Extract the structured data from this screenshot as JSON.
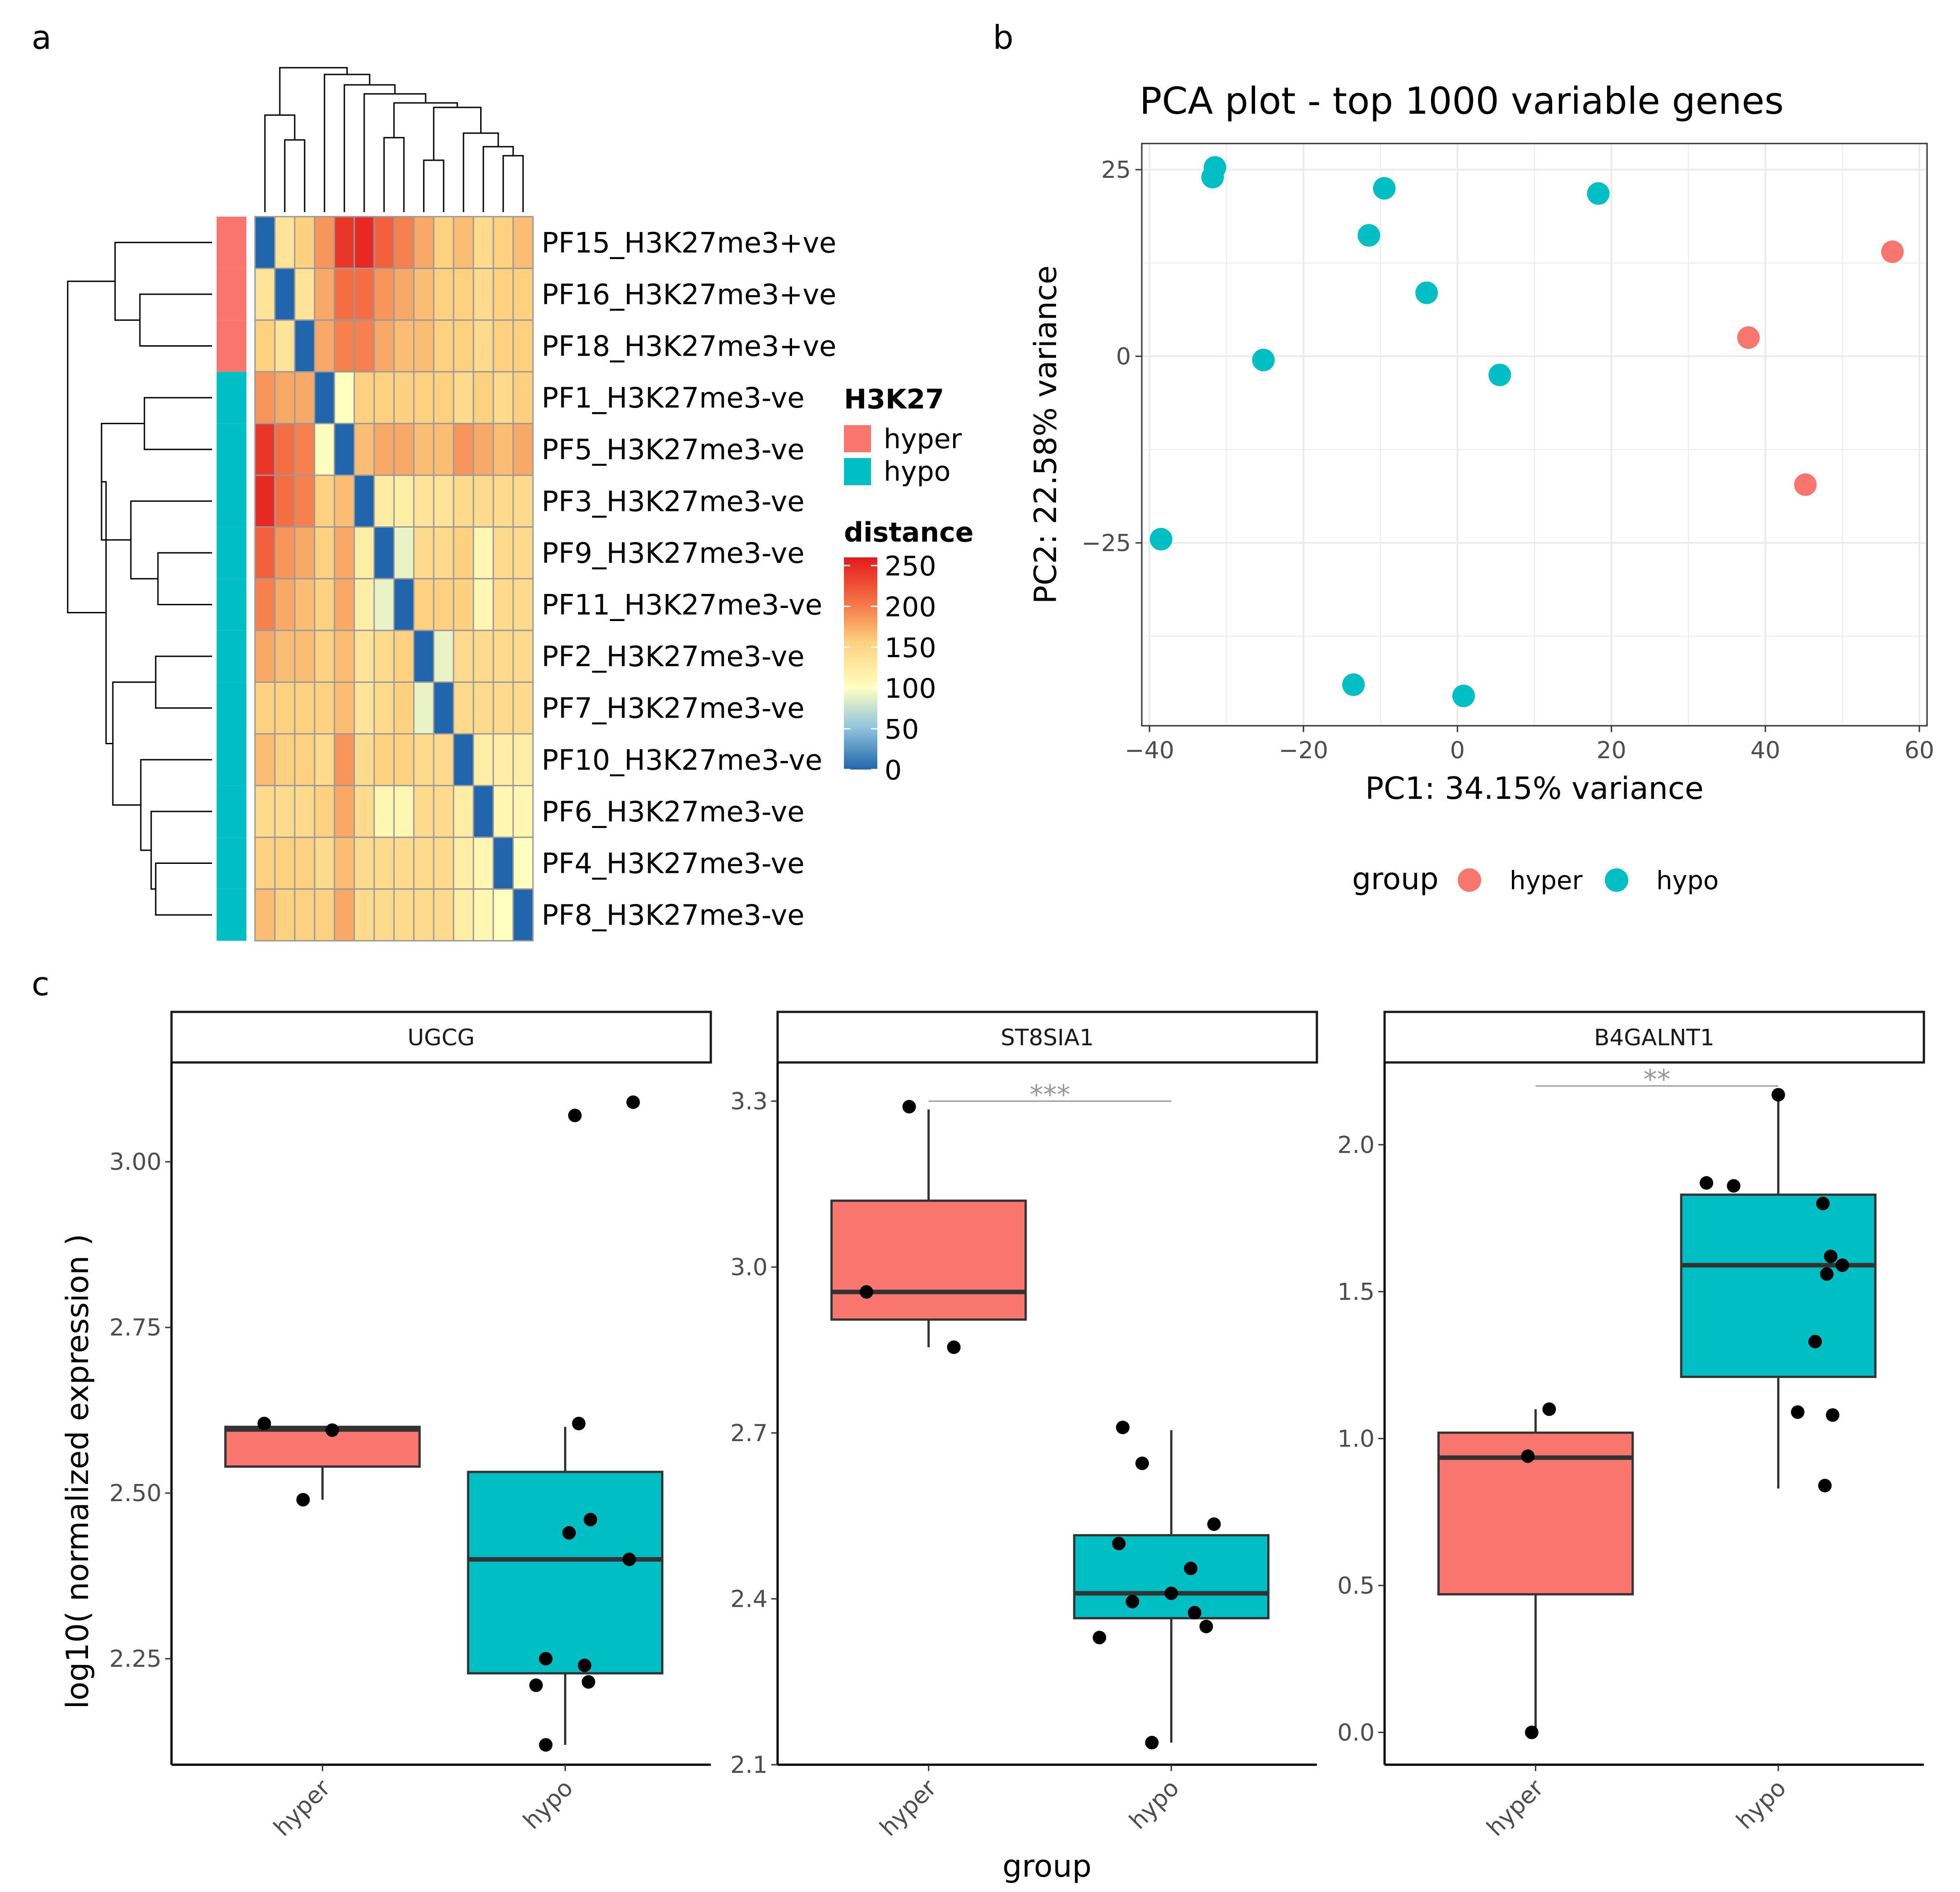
{
  "colors": {
    "hyper": "#F8766D",
    "hypo": "#00BFC4",
    "panel_border": "#333333",
    "grid": "#EBEBEB",
    "axis_text": "#4D4D4D",
    "sig": "#999999",
    "heat_low": "#2166AC",
    "heat_mid": "#FFFFBF",
    "heat_high": "#E41A1C"
  },
  "panel_labels": [
    "a",
    "b",
    "c"
  ],
  "chart_data": [
    {
      "panel": "a",
      "type": "heatmap",
      "row_labels": [
        "PF15_H3K27me3+ve",
        "PF16_H3K27me3+ve",
        "PF18_H3K27me3+ve",
        "PF1_H3K27me3-ve",
        "PF5_H3K27me3-ve",
        "PF3_H3K27me3-ve",
        "PF9_H3K27me3-ve",
        "PF11_H3K27me3-ve",
        "PF2_H3K27me3-ve",
        "PF7_H3K27me3-ve",
        "PF10_H3K27me3-ve",
        "PF6_H3K27me3-ve",
        "PF4_H3K27me3-ve",
        "PF8_H3K27me3-ve"
      ],
      "row_groups": [
        "hyper",
        "hyper",
        "hyper",
        "hypo",
        "hypo",
        "hypo",
        "hypo",
        "hypo",
        "hypo",
        "hypo",
        "hypo",
        "hypo",
        "hypo",
        "hypo"
      ],
      "values": [
        [
          0,
          130,
          150,
          180,
          240,
          250,
          210,
          190,
          170,
          150,
          160,
          140,
          150,
          160
        ],
        [
          130,
          0,
          130,
          170,
          200,
          200,
          180,
          170,
          160,
          150,
          150,
          140,
          150,
          150
        ],
        [
          150,
          130,
          0,
          170,
          190,
          190,
          170,
          160,
          160,
          150,
          150,
          140,
          150,
          150
        ],
        [
          180,
          170,
          170,
          0,
          100,
          150,
          150,
          150,
          150,
          150,
          140,
          150,
          140,
          150
        ],
        [
          240,
          200,
          190,
          100,
          0,
          160,
          170,
          170,
          160,
          160,
          180,
          170,
          160,
          170
        ],
        [
          250,
          200,
          190,
          150,
          160,
          0,
          120,
          120,
          130,
          130,
          140,
          140,
          140,
          140
        ],
        [
          210,
          180,
          170,
          150,
          170,
          120,
          0,
          90,
          140,
          140,
          150,
          110,
          140,
          140
        ],
        [
          190,
          170,
          160,
          150,
          170,
          120,
          90,
          0,
          150,
          150,
          150,
          110,
          140,
          140
        ],
        [
          170,
          160,
          160,
          150,
          160,
          130,
          140,
          150,
          0,
          90,
          140,
          140,
          140,
          140
        ],
        [
          150,
          150,
          150,
          150,
          160,
          130,
          140,
          150,
          90,
          0,
          140,
          140,
          140,
          140
        ],
        [
          160,
          150,
          150,
          140,
          180,
          140,
          150,
          150,
          140,
          140,
          0,
          120,
          120,
          120
        ],
        [
          140,
          140,
          140,
          150,
          170,
          140,
          110,
          110,
          140,
          140,
          120,
          0,
          110,
          110
        ],
        [
          150,
          150,
          150,
          140,
          160,
          140,
          140,
          140,
          140,
          140,
          120,
          110,
          0,
          100
        ],
        [
          160,
          150,
          150,
          150,
          170,
          140,
          140,
          140,
          140,
          140,
          120,
          110,
          100,
          0
        ]
      ],
      "annotation_title": "H3K27",
      "annotation_legend": [
        "hyper",
        "hypo"
      ],
      "colorbar_title": "distance",
      "colorbar_ticks": [
        250,
        200,
        150,
        100,
        50,
        0
      ],
      "range": [
        0,
        260
      ]
    },
    {
      "panel": "b",
      "type": "scatter",
      "title": "PCA plot - top 1000 variable genes",
      "xlabel": "PC1: 34.15% variance",
      "ylabel": "PC2: 22.58% variance",
      "xlim": [
        -41,
        61
      ],
      "ylim": [
        -49.5,
        28.5
      ],
      "xticks": [
        -40,
        -20,
        0,
        20,
        40,
        60
      ],
      "xtick_labels": [
        "−40",
        "−20",
        "0",
        "20",
        "40",
        "60"
      ],
      "yticks": [
        -25,
        0,
        25
      ],
      "ytick_labels": [
        "−25",
        "0",
        "25"
      ],
      "legend_title": "group",
      "legend_labels": [
        "hyper",
        "hypo"
      ],
      "series": [
        {
          "name": "hyper",
          "points": [
            [
              56.5,
              14
            ],
            [
              37.8,
              2.5
            ],
            [
              45.2,
              -17.2
            ]
          ]
        },
        {
          "name": "hypo",
          "points": [
            [
              -31.5,
              25.3
            ],
            [
              -31.8,
              24
            ],
            [
              -9.5,
              22.5
            ],
            [
              18.3,
              21.8
            ],
            [
              -11.5,
              16.2
            ],
            [
              -4,
              8.5
            ],
            [
              -25.2,
              -0.5
            ],
            [
              5.5,
              -2.5
            ],
            [
              -38.5,
              -24.5
            ],
            [
              -13.5,
              -44
            ],
            [
              0.8,
              -45.5
            ]
          ]
        }
      ]
    },
    {
      "panel": "c",
      "type": "box",
      "ylabel": "log10( normalized expression )",
      "xlabel": "group",
      "categories": [
        "hyper",
        "hypo"
      ],
      "facets": [
        {
          "title": "UGCG",
          "ylim": [
            2.09,
            3.15
          ],
          "yticks": [
            2.25,
            2.5,
            2.75,
            3.0
          ],
          "ytick_labels": [
            "2.25",
            "2.50",
            "2.75",
            "3.00"
          ],
          "significance": "",
          "boxes": [
            {
              "group": "hyper",
              "q1": 2.54,
              "median": 2.596,
              "q3": 2.6,
              "lower": 2.49,
              "upper": 2.6
            },
            {
              "group": "hypo",
              "q1": 2.228,
              "median": 2.4,
              "q3": 2.532,
              "lower": 2.12,
              "upper": 2.6
            }
          ],
          "points": [
            {
              "group": "hyper",
              "x": -0.3,
              "y": 2.605
            },
            {
              "group": "hyper",
              "x": 0.05,
              "y": 2.595
            },
            {
              "group": "hyper",
              "x": -0.1,
              "y": 2.49
            },
            {
              "group": "hypo",
              "x": 0.05,
              "y": 3.07
            },
            {
              "group": "hypo",
              "x": 0.35,
              "y": 3.09
            },
            {
              "group": "hypo",
              "x": 0.07,
              "y": 2.605
            },
            {
              "group": "hypo",
              "x": 0.13,
              "y": 2.46
            },
            {
              "group": "hypo",
              "x": 0.02,
              "y": 2.44
            },
            {
              "group": "hypo",
              "x": 0.33,
              "y": 2.4
            },
            {
              "group": "hypo",
              "x": -0.1,
              "y": 2.25
            },
            {
              "group": "hypo",
              "x": 0.1,
              "y": 2.24
            },
            {
              "group": "hypo",
              "x": 0.12,
              "y": 2.215
            },
            {
              "group": "hypo",
              "x": -0.15,
              "y": 2.21
            },
            {
              "group": "hypo",
              "x": -0.1,
              "y": 2.12
            }
          ]
        },
        {
          "title": "ST8SIA1",
          "ylim": [
            2.1,
            3.37
          ],
          "yticks": [
            2.1,
            2.4,
            2.7,
            3.0,
            3.3
          ],
          "ytick_labels": [
            "2.1",
            "2.4",
            "2.7",
            "3.0",
            "3.3"
          ],
          "significance": "***",
          "boxes": [
            {
              "group": "hyper",
              "q1": 2.905,
              "median": 2.955,
              "q3": 3.12,
              "lower": 2.855,
              "upper": 3.285
            },
            {
              "group": "hypo",
              "q1": 2.365,
              "median": 2.41,
              "q3": 2.515,
              "lower": 2.14,
              "upper": 2.705
            }
          ],
          "points": [
            {
              "group": "hyper",
              "x": -0.1,
              "y": 3.29
            },
            {
              "group": "hyper",
              "x": -0.32,
              "y": 2.955
            },
            {
              "group": "hyper",
              "x": 0.13,
              "y": 2.855
            },
            {
              "group": "hypo",
              "x": -0.25,
              "y": 2.71
            },
            {
              "group": "hypo",
              "x": -0.15,
              "y": 2.645
            },
            {
              "group": "hypo",
              "x": 0.22,
              "y": 2.535
            },
            {
              "group": "hypo",
              "x": -0.27,
              "y": 2.5
            },
            {
              "group": "hypo",
              "x": 0.1,
              "y": 2.455
            },
            {
              "group": "hypo",
              "x": -0.2,
              "y": 2.395
            },
            {
              "group": "hypo",
              "x": 0.0,
              "y": 2.41
            },
            {
              "group": "hypo",
              "x": 0.12,
              "y": 2.375
            },
            {
              "group": "hypo",
              "x": 0.18,
              "y": 2.35
            },
            {
              "group": "hypo",
              "x": -0.37,
              "y": 2.33
            },
            {
              "group": "hypo",
              "x": -0.1,
              "y": 2.14
            }
          ]
        },
        {
          "title": "B4GALNT1",
          "ylim": [
            -0.11,
            2.28
          ],
          "yticks": [
            0.0,
            0.5,
            1.0,
            1.5,
            2.0
          ],
          "ytick_labels": [
            "0.0",
            "0.5",
            "1.0",
            "1.5",
            "2.0"
          ],
          "significance": "**",
          "boxes": [
            {
              "group": "hyper",
              "q1": 0.47,
              "median": 0.935,
              "q3": 1.02,
              "lower": 0.0,
              "upper": 1.1
            },
            {
              "group": "hypo",
              "q1": 1.21,
              "median": 1.59,
              "q3": 1.83,
              "lower": 0.83,
              "upper": 2.17
            }
          ],
          "points": [
            {
              "group": "hyper",
              "x": 0.07,
              "y": 1.1
            },
            {
              "group": "hyper",
              "x": -0.04,
              "y": 0.94
            },
            {
              "group": "hyper",
              "x": -0.02,
              "y": 0.0
            },
            {
              "group": "hypo",
              "x": 0.0,
              "y": 2.17
            },
            {
              "group": "hypo",
              "x": -0.37,
              "y": 1.87
            },
            {
              "group": "hypo",
              "x": -0.23,
              "y": 1.86
            },
            {
              "group": "hypo",
              "x": 0.23,
              "y": 1.8
            },
            {
              "group": "hypo",
              "x": 0.27,
              "y": 1.62
            },
            {
              "group": "hypo",
              "x": 0.25,
              "y": 1.56
            },
            {
              "group": "hypo",
              "x": 0.33,
              "y": 1.59
            },
            {
              "group": "hypo",
              "x": 0.19,
              "y": 1.33
            },
            {
              "group": "hypo",
              "x": 0.1,
              "y": 1.09
            },
            {
              "group": "hypo",
              "x": 0.28,
              "y": 1.08
            },
            {
              "group": "hypo",
              "x": 0.24,
              "y": 0.84
            }
          ]
        }
      ]
    }
  ]
}
